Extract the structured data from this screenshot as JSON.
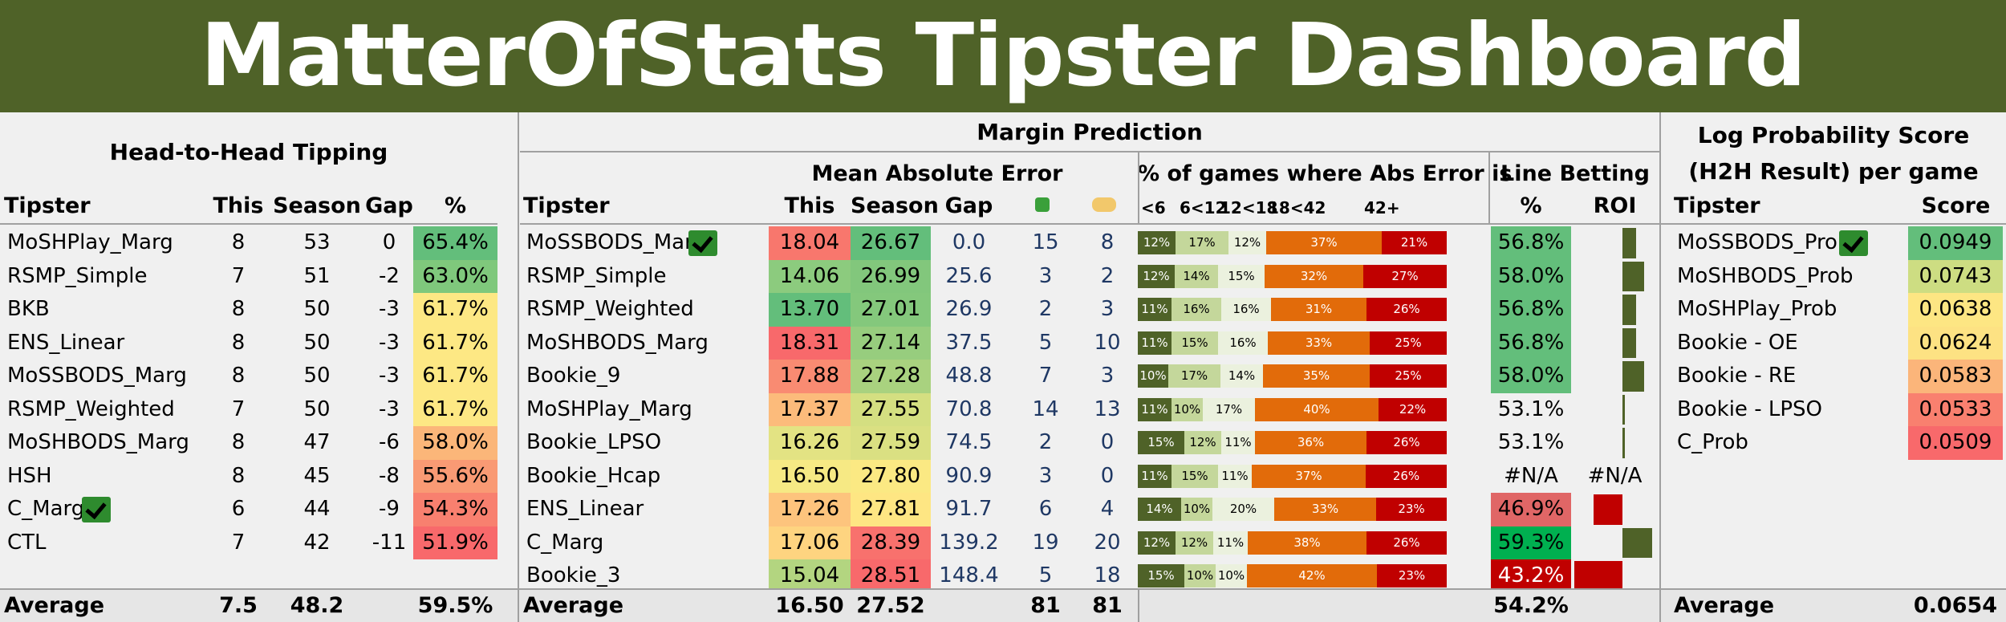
{
  "title": "MatterOfStats Tipster Dashboard",
  "h2h": {
    "title": "Head-to-Head Tipping",
    "headers": [
      "Tipster",
      "This",
      "Season",
      "Gap",
      "%"
    ],
    "rows": [
      {
        "tipster": "MoSHPlay_Marg",
        "this": "8",
        "season": "53",
        "gap": "0",
        "pct": "65.4%",
        "color": "#63be7b",
        "check": false
      },
      {
        "tipster": "RSMP_Simple",
        "this": "7",
        "season": "51",
        "gap": "-2",
        "pct": "63.0%",
        "color": "#7fc87c",
        "check": false
      },
      {
        "tipster": "BKB",
        "this": "8",
        "season": "50",
        "gap": "-3",
        "pct": "61.7%",
        "color": "#fde884",
        "check": false
      },
      {
        "tipster": "ENS_Linear",
        "this": "8",
        "season": "50",
        "gap": "-3",
        "pct": "61.7%",
        "color": "#fde884",
        "check": false
      },
      {
        "tipster": "MoSSBODS_Marg",
        "this": "8",
        "season": "50",
        "gap": "-3",
        "pct": "61.7%",
        "color": "#fde884",
        "check": false
      },
      {
        "tipster": "RSMP_Weighted",
        "this": "7",
        "season": "50",
        "gap": "-3",
        "pct": "61.7%",
        "color": "#fde884",
        "check": false
      },
      {
        "tipster": "MoSHBODS_Marg",
        "this": "8",
        "season": "47",
        "gap": "-6",
        "pct": "58.0%",
        "color": "#fbb679",
        "check": false
      },
      {
        "tipster": "HSH",
        "this": "8",
        "season": "45",
        "gap": "-8",
        "pct": "55.6%",
        "color": "#f99a74",
        "check": false
      },
      {
        "tipster": "C_Marg",
        "this": "6",
        "season": "44",
        "gap": "-9",
        "pct": "54.3%",
        "color": "#f8806f",
        "check": true
      },
      {
        "tipster": "CTL",
        "this": "7",
        "season": "42",
        "gap": "-11",
        "pct": "51.9%",
        "color": "#f8696b",
        "check": false
      }
    ],
    "footer": {
      "label": "Average",
      "this": "7.5",
      "season": "48.2",
      "pct": "59.5%"
    }
  },
  "margin": {
    "title": "Margin Prediction",
    "mae_title": "Mean Absolute Error",
    "dist_title": "% of games where Abs Error is",
    "line_title": "Line Betting",
    "headers": [
      "Tipster",
      "This",
      "Season",
      "Gap"
    ],
    "dist_headers": [
      "<6",
      "6<12",
      "12<18",
      "18<42",
      "42+"
    ],
    "line_headers": [
      "%",
      "ROI"
    ],
    "icons": [
      "flag-icon",
      "hand-icon"
    ],
    "seg_colors": [
      "#4f6228",
      "#c4d79b",
      "#ebf1de",
      "#e26b0a",
      "#c00000"
    ],
    "seg_text_colors": [
      "#ffffff",
      "#000000",
      "#000000",
      "#ffffff",
      "#ffffff"
    ],
    "rows": [
      {
        "tipster": "MoSSBODS_Marg",
        "check": true,
        "this": "18.04",
        "this_color": "#f8776d",
        "season": "26.67",
        "season_color": "#63be7b",
        "gap": "0.0",
        "a": "15",
        "b": "8",
        "dist": [
          12,
          17,
          12,
          37,
          21
        ],
        "dist_labels": [
          "12%",
          "17%",
          "12%",
          "37%",
          "21%"
        ],
        "lb_pct": "56.8%",
        "lb_color": "#63be7b",
        "roi": 0.45
      },
      {
        "tipster": "RSMP_Simple",
        "check": false,
        "this": "14.06",
        "this_color": "#8ccb7e",
        "season": "26.99",
        "season_color": "#82c77c",
        "gap": "25.6",
        "a": "3",
        "b": "2",
        "dist": [
          12,
          14,
          15,
          32,
          27
        ],
        "dist_labels": [
          "12%",
          "14%",
          "15%",
          "32%",
          "27%"
        ],
        "lb_pct": "58.0%",
        "lb_color": "#63be7b",
        "roi": 0.72
      },
      {
        "tipster": "RSMP_Weighted",
        "check": false,
        "this": "13.70",
        "this_color": "#63be7b",
        "season": "27.01",
        "season_color": "#84c87c",
        "gap": "26.9",
        "a": "2",
        "b": "3",
        "dist": [
          11,
          16,
          16,
          31,
          26
        ],
        "dist_labels": [
          "11%",
          "16%",
          "16%",
          "31%",
          "26%"
        ],
        "lb_pct": "56.8%",
        "lb_color": "#63be7b",
        "roi": 0.45
      },
      {
        "tipster": "MoSHBODS_Marg",
        "check": false,
        "this": "18.31",
        "this_color": "#f8696b",
        "season": "27.14",
        "season_color": "#97cd7e",
        "gap": "37.5",
        "a": "5",
        "b": "10",
        "dist": [
          11,
          15,
          16,
          33,
          25
        ],
        "dist_labels": [
          "11%",
          "15%",
          "16%",
          "33%",
          "25%"
        ],
        "lb_pct": "56.8%",
        "lb_color": "#63be7b",
        "roi": 0.45
      },
      {
        "tipster": "Bookie_9",
        "check": false,
        "this": "17.88",
        "this_color": "#f98b72",
        "season": "27.28",
        "season_color": "#a9d27f",
        "gap": "48.8",
        "a": "7",
        "b": "3",
        "dist": [
          10,
          17,
          14,
          35,
          25
        ],
        "dist_labels": [
          "10%",
          "17%",
          "14%",
          "35%",
          "25%"
        ],
        "lb_pct": "58.0%",
        "lb_color": "#63be7b",
        "roi": 0.72
      },
      {
        "tipster": "MoSHPlay_Marg",
        "check": false,
        "this": "17.37",
        "this_color": "#fcbb7b",
        "season": "27.55",
        "season_color": "#d4df81",
        "gap": "70.8",
        "a": "14",
        "b": "13",
        "dist": [
          11,
          10,
          17,
          40,
          22
        ],
        "dist_labels": [
          "11%",
          "10%",
          "17%",
          "40%",
          "22%"
        ],
        "lb_pct": "53.1%",
        "lb_color": "#f0f0f0",
        "roi": 0.05
      },
      {
        "tipster": "Bookie_LPSO",
        "check": false,
        "this": "16.26",
        "this_color": "#e3e383",
        "season": "27.59",
        "season_color": "#dae082",
        "gap": "74.5",
        "a": "2",
        "b": "0",
        "dist": [
          15,
          12,
          11,
          36,
          26
        ],
        "dist_labels": [
          "15%",
          "12%",
          "11%",
          "36%",
          "26%"
        ],
        "lb_pct": "53.1%",
        "lb_color": "#f0f0f0",
        "roi": 0.05
      },
      {
        "tipster": "Bookie_Hcap",
        "check": false,
        "this": "16.50",
        "this_color": "#f6e984",
        "season": "27.80",
        "season_color": "#fbe983",
        "gap": "90.9",
        "a": "3",
        "b": "0",
        "dist": [
          11,
          15,
          11,
          37,
          26
        ],
        "dist_labels": [
          "11%",
          "15%",
          "11%",
          "37%",
          "26%"
        ],
        "lb_pct": "#N/A",
        "lb_color": "#f0f0f0",
        "roi": null,
        "roi_text": "#N/A"
      },
      {
        "tipster": "ENS_Linear",
        "check": false,
        "this": "17.26",
        "this_color": "#fdc47d",
        "season": "27.81",
        "season_color": "#fee683",
        "gap": "91.7",
        "a": "6",
        "b": "4",
        "dist": [
          14,
          10,
          20,
          33,
          23
        ],
        "dist_labels": [
          "14%",
          "10%",
          "20%",
          "33%",
          "23%"
        ],
        "lb_pct": "46.9%",
        "lb_color": "#e06666",
        "roi": -0.6
      },
      {
        "tipster": "C_Marg",
        "check": false,
        "this": "17.06",
        "this_color": "#fed480",
        "season": "28.39",
        "season_color": "#f8716d",
        "gap": "139.2",
        "a": "19",
        "b": "20",
        "dist": [
          12,
          12,
          11,
          38,
          26
        ],
        "dist_labels": [
          "12%",
          "12%",
          "11%",
          "38%",
          "26%"
        ],
        "lb_pct": "59.3%",
        "lb_color": "#00b050",
        "roi": 1.0
      },
      {
        "tipster": "Bookie_3",
        "check": false,
        "this": "15.04",
        "this_color": "#b3d580",
        "season": "28.51",
        "season_color": "#f8696b",
        "gap": "148.4",
        "a": "5",
        "b": "18",
        "dist": [
          15,
          10,
          10,
          42,
          23
        ],
        "dist_labels": [
          "15%",
          "10%",
          "10%",
          "42%",
          "23%"
        ],
        "lb_pct": "43.2%",
        "lb_color": "#c00000",
        "roi": -1.0
      }
    ],
    "footer": {
      "label": "Average",
      "this": "16.50",
      "season": "27.52",
      "a": "81",
      "b": "81",
      "lb_pct": "54.2%"
    }
  },
  "lps": {
    "title1": "Log Probability Score",
    "title2": "(H2H Result) per game",
    "headers": [
      "Tipster",
      "Score"
    ],
    "rows": [
      {
        "tipster": "MoSSBODS_Prob",
        "check": true,
        "score": "0.0949",
        "color": "#63be7b"
      },
      {
        "tipster": "MoSHBODS_Prob",
        "check": false,
        "score": "0.0743",
        "color": "#cddd82"
      },
      {
        "tipster": "MoSHPlay_Prob",
        "check": false,
        "score": "0.0638",
        "color": "#fde683"
      },
      {
        "tipster": "Bookie - OE",
        "check": false,
        "score": "0.0624",
        "color": "#fde283"
      },
      {
        "tipster": "Bookie - RE",
        "check": false,
        "score": "0.0583",
        "color": "#fbb57a"
      },
      {
        "tipster": "Bookie - LPSO",
        "check": false,
        "score": "0.0533",
        "color": "#f9806f"
      },
      {
        "tipster": "C_Prob",
        "check": false,
        "score": "0.0509",
        "color": "#f8696b"
      }
    ],
    "footer": {
      "label": "Average",
      "score": "0.0654"
    }
  }
}
